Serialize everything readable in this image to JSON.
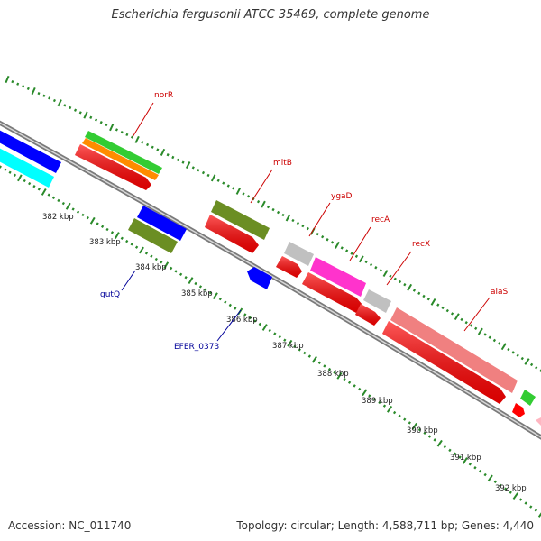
{
  "title": "Escherichia fergusonii ATCC 35469, complete genome",
  "footer": {
    "accession": "Accession: NC_011740",
    "summary": "Topology: circular; Length: 4,588,711 bp; Genes: 4,440"
  },
  "colors": {
    "backbone": "#7a7a7a",
    "ticks": "#2a8a2a",
    "label_plus": "#cc0000",
    "label_minus": "#000099",
    "cds": "#ff0000",
    "gene_green": "#33cc33",
    "gene_orange": "#ff8c00",
    "gene_olive": "#6b8e23",
    "gene_blue": "#0000ff",
    "gene_cyan": "#00ffff",
    "gene_silver": "#c0c0c0",
    "gene_magenta": "#ff33cc",
    "gene_salmon": "#f08080",
    "gene_pink": "#ffb6c1"
  },
  "ruler_labels": [
    "382 kbp",
    "383 kbp",
    "384 kbp",
    "385 kbp",
    "386 kbp",
    "387 kbp",
    "388 kbp",
    "389 kbp",
    "390 kbp",
    "391 kbp",
    "392 kbp"
  ],
  "gene_labels_plus": [
    "norR",
    "mltB",
    "ygaD",
    "recA",
    "recX",
    "alaS"
  ],
  "gene_labels_minus": [
    "gutQ",
    "EFER_0373"
  ]
}
